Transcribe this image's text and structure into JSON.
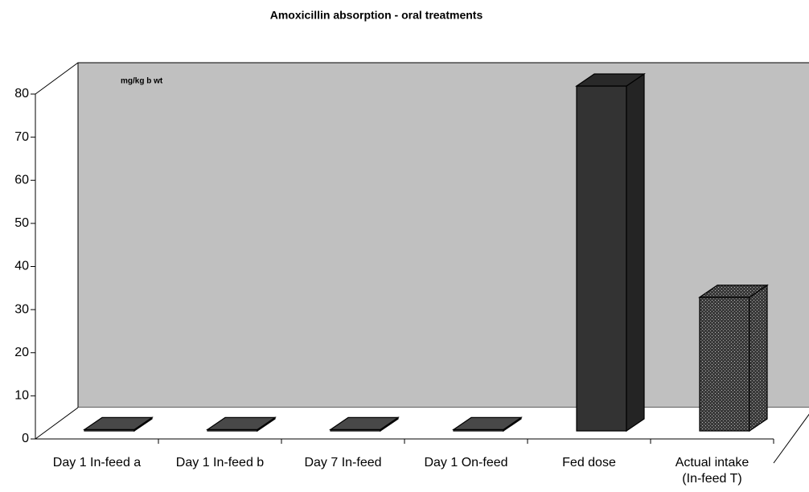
{
  "chart_data": {
    "type": "bar3d",
    "title": "Amoxicillin absorption - oral treatments",
    "annotation": "mg/kg b wt",
    "categories": [
      "Day 1 In-feed a",
      "Day 1 In-feed b",
      "Day 7 In-feed",
      "Day 1 On-feed",
      "Fed dose",
      "Actual intake\n(In-feed T)"
    ],
    "values": [
      0.3,
      0.3,
      0.3,
      0.3,
      80,
      31
    ],
    "colors": [
      "#5a5a5a",
      "#5a5a5a",
      "#5a5a5a",
      "#5a5a5a",
      "#333333",
      "#3a3a3a"
    ],
    "fills": [
      "solid",
      "solid",
      "solid",
      "solid",
      "solid",
      "dotted"
    ],
    "ylim": [
      0,
      80
    ],
    "yticks": [
      0,
      10,
      20,
      30,
      40,
      50,
      60,
      70,
      80
    ],
    "wall_color": "#c0c0c0",
    "grid": false
  }
}
